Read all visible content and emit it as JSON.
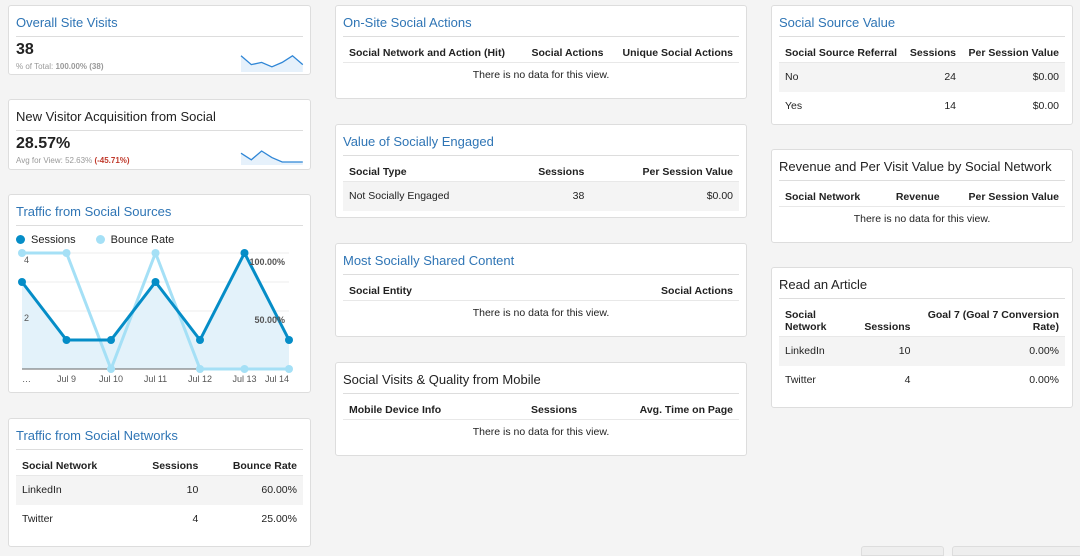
{
  "overall": {
    "title": "Overall Site Visits",
    "value": "38",
    "sub_label": "% of Total:",
    "sub_value": "100.00% (38)",
    "spark": [
      5,
      1,
      2,
      0,
      2,
      5,
      1
    ]
  },
  "new_visitor": {
    "title": "New Visitor Acquisition from Social",
    "value": "28.57%",
    "sub_label": "Avg for View: 52.63%",
    "change": "(-45.71%)",
    "spark": [
      3,
      0,
      4,
      1,
      -1,
      -1,
      -1
    ]
  },
  "traffic_sources": {
    "title": "Traffic from Social Sources"
  },
  "chart_data": {
    "type": "line",
    "categories": [
      "…",
      "Jul 9",
      "Jul 10",
      "Jul 11",
      "Jul 12",
      "Jul 13",
      "Jul 14"
    ],
    "series": [
      {
        "name": "Sessions",
        "values": [
          3,
          1,
          1,
          3,
          1,
          4,
          1
        ],
        "color": "#058dc7",
        "axis": "left",
        "area": true
      },
      {
        "name": "Bounce Rate",
        "values": [
          100,
          100,
          0,
          100,
          0,
          0,
          0
        ],
        "color": "#a5e0f6",
        "axis": "right",
        "unit": "%"
      }
    ],
    "left_axis": {
      "ticks": [
        "4",
        "2"
      ],
      "range": [
        0,
        4
      ]
    },
    "right_axis": {
      "ticks": [
        "100.00%",
        "50.00%"
      ],
      "range": [
        0,
        100
      ]
    },
    "legend": "top-left",
    "grid": true
  },
  "networks": {
    "title": "Traffic from Social Networks",
    "headers": [
      "Social Network",
      "Sessions",
      "Bounce Rate"
    ],
    "rows": [
      [
        "LinkedIn",
        "10",
        "60.00%"
      ],
      [
        "Twitter",
        "4",
        "25.00%"
      ]
    ]
  },
  "onsite": {
    "title": "On-Site Social Actions",
    "headers": [
      "Social Network and Action (Hit)",
      "Social Actions",
      "Unique Social Actions"
    ],
    "empty": "There is no data for this view."
  },
  "engaged": {
    "title": "Value of Socially Engaged",
    "headers": [
      "Social Type",
      "Sessions",
      "Per Session Value"
    ],
    "rows": [
      [
        "Not Socially Engaged",
        "38",
        "$0.00"
      ]
    ]
  },
  "shared": {
    "title": "Most Socially Shared Content",
    "headers": [
      "Social Entity",
      "Social Actions"
    ],
    "empty": "There is no data for this view."
  },
  "mobile": {
    "title": "Social Visits & Quality from Mobile",
    "headers": [
      "Mobile Device Info",
      "Sessions",
      "Avg. Time on Page"
    ],
    "empty": "There is no data for this view."
  },
  "source_value": {
    "title": "Social Source Value",
    "headers": [
      "Social Source Referral",
      "Sessions",
      "Per Session Value"
    ],
    "rows": [
      [
        "No",
        "24",
        "$0.00"
      ],
      [
        "Yes",
        "14",
        "$0.00"
      ]
    ]
  },
  "revenue": {
    "title": "Revenue and Per Visit Value by Social Network",
    "headers": [
      "Social Network",
      "Revenue",
      "Per Session Value"
    ],
    "empty": "There is no data for this view."
  },
  "article": {
    "title": "Read an Article",
    "headers": [
      "Social Network",
      "Sessions",
      "Goal 7 (Goal 7 Conversion Rate)"
    ],
    "rows": [
      [
        "LinkedIn",
        "10",
        "0.00%"
      ],
      [
        "Twitter",
        "4",
        "0.00%"
      ]
    ]
  }
}
